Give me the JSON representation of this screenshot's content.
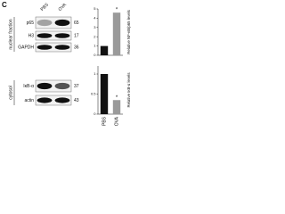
{
  "panel_label": "C",
  "blot": {
    "lanes": [
      "PBS",
      "OVA"
    ],
    "sections": [
      {
        "label": "nuclear fraction",
        "rows": [
          {
            "protein": "p65",
            "kda": "65"
          },
          {
            "protein": "H3",
            "kda": "17"
          },
          {
            "protein": "GAPDH",
            "kda": "36"
          }
        ]
      },
      {
        "label": "cytosol",
        "rows": [
          {
            "protein": "IκB-α",
            "kda": "37"
          },
          {
            "protein": "actin",
            "kda": "43"
          }
        ]
      }
    ]
  },
  "chart_data": [
    {
      "type": "bar",
      "y_label": "Relative NF-κB/p65 levels",
      "categories": [
        "PBS",
        "OVA"
      ],
      "values": [
        1,
        4.6
      ],
      "colors": [
        "#111111",
        "#9a9a9a"
      ],
      "ylim": [
        0,
        5
      ],
      "yticks": [
        0,
        1,
        2,
        3,
        4,
        5
      ],
      "annotations": [
        {
          "text": "*",
          "category": "OVA"
        }
      ]
    },
    {
      "type": "bar",
      "y_label": "Relative IκB-α levels",
      "categories": [
        "PBS",
        "OVA"
      ],
      "values": [
        1,
        0.35
      ],
      "colors": [
        "#111111",
        "#9a9a9a"
      ],
      "ylim": [
        0,
        1.2
      ],
      "yticks": [
        0,
        0.5,
        1
      ],
      "annotations": [
        {
          "text": "*",
          "category": "OVA"
        }
      ]
    }
  ]
}
